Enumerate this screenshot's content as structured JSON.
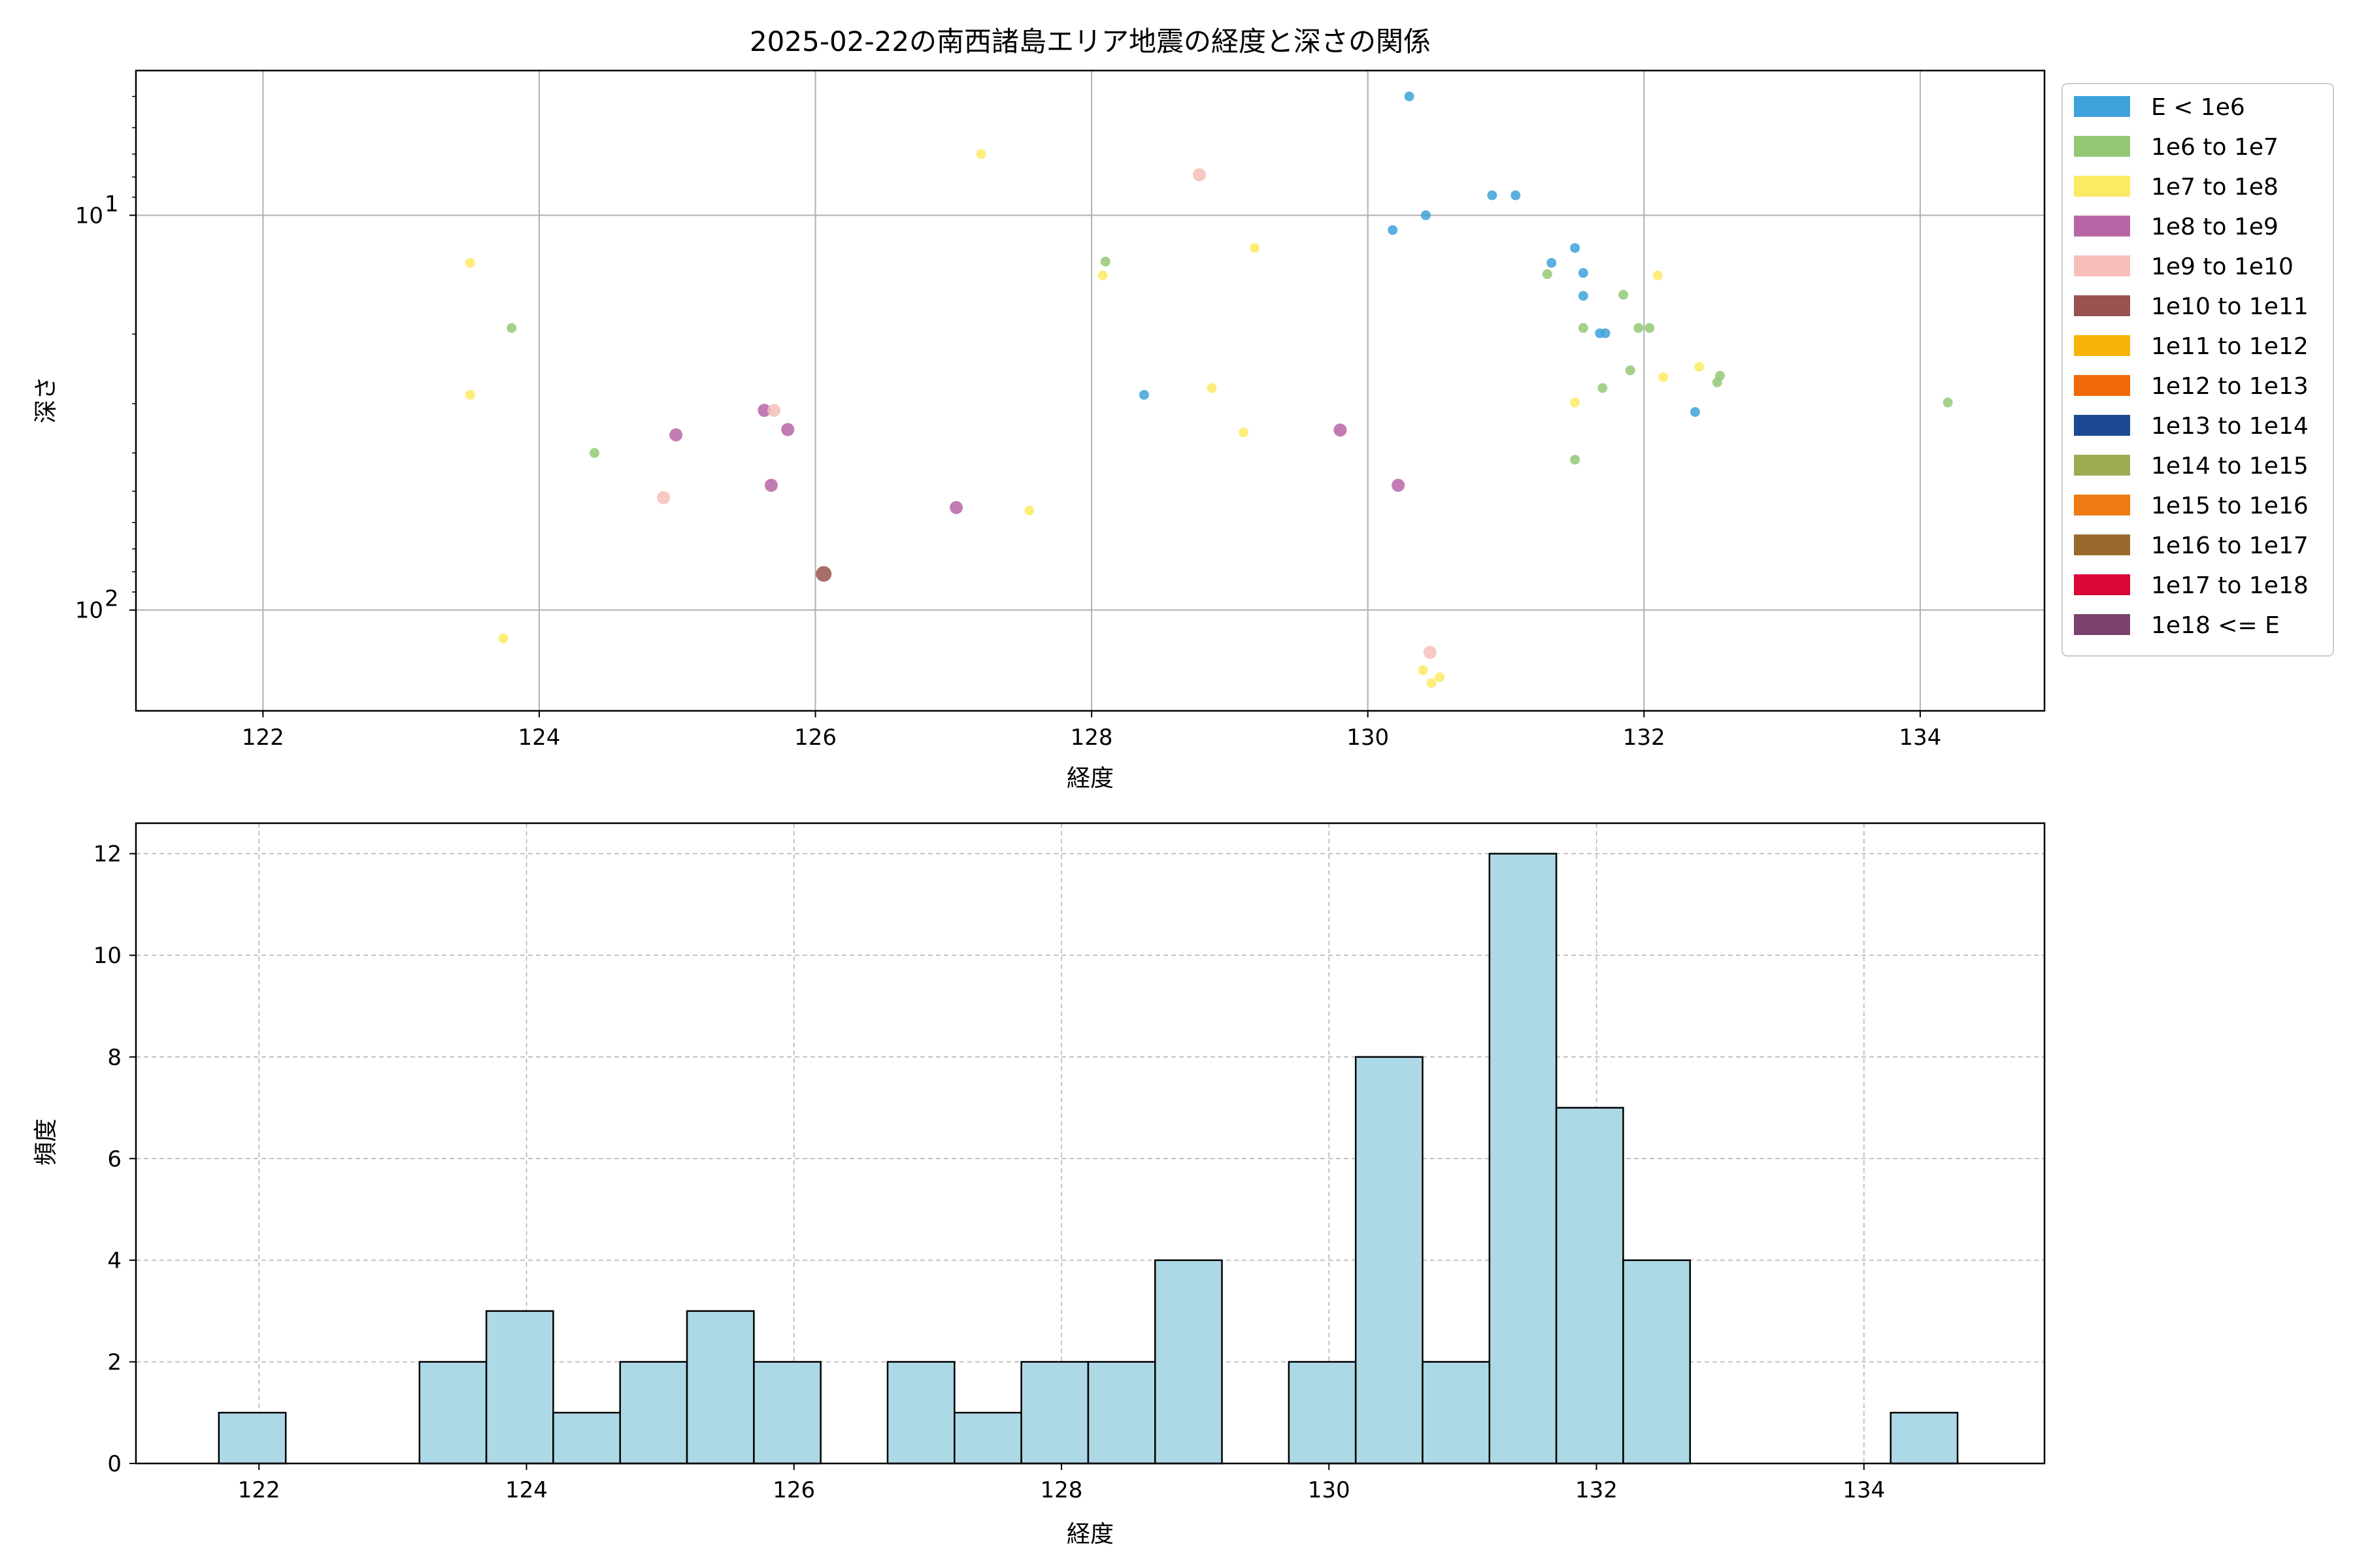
{
  "title": "2025-02-22の南西諸島エリア地震の経度と深さの関係",
  "chart_data": [
    {
      "type": "scatter",
      "xlabel": "経度",
      "ylabel": "深さ",
      "xlim": [
        121.08,
        134.9
      ],
      "ylim": [
        4.3,
        180
      ],
      "y_scale": "log",
      "y_inverted": true,
      "grid": true,
      "x_ticks": [
        "122",
        "124",
        "126",
        "128",
        "130",
        "132",
        "134"
      ],
      "y_ticks": [
        {
          "value": 10,
          "base": "10",
          "exp": "1"
        },
        {
          "value": 100,
          "base": "10",
          "exp": "2"
        }
      ],
      "legend_position": "outside-right",
      "legend": [
        {
          "label": "E < 1e6",
          "color": "#3fa2db"
        },
        {
          "label": "1e6 to 1e7",
          "color": "#93c975"
        },
        {
          "label": "1e7 to 1e8",
          "color": "#fdea64"
        },
        {
          "label": "1e8 to 1e9",
          "color": "#b865a6"
        },
        {
          "label": "1e9 to 1e10",
          "color": "#f6bfb8"
        },
        {
          "label": "1e10 to 1e11",
          "color": "#9a5450"
        },
        {
          "label": "1e11 to 1e12",
          "color": "#f7b30a"
        },
        {
          "label": "1e12 to 1e13",
          "color": "#ef6909"
        },
        {
          "label": "1e13 to 1e14",
          "color": "#1d4893"
        },
        {
          "label": "1e14 to 1e15",
          "color": "#9dac52"
        },
        {
          "label": "1e15 to 1e16",
          "color": "#ee7a11"
        },
        {
          "label": "1e16 to 1e17",
          "color": "#986b2c"
        },
        {
          "label": "1e17 to 1e18",
          "color": "#db0739"
        },
        {
          "label": "1e18 <= E",
          "color": "#7a426c"
        }
      ],
      "series": [
        {
          "name": "E < 1e6",
          "color": "#3fa2db",
          "points": [
            [
              130.3,
              5.0
            ],
            [
              130.42,
              10.0
            ],
            [
              130.18,
              10.9
            ],
            [
              130.9,
              8.9
            ],
            [
              131.07,
              8.9
            ],
            [
              131.5,
              12.1
            ],
            [
              131.33,
              13.2
            ],
            [
              131.56,
              14.0
            ],
            [
              131.56,
              16.0
            ],
            [
              131.68,
              19.9
            ],
            [
              131.72,
              19.9
            ],
            [
              128.38,
              28.5
            ],
            [
              132.37,
              31.5
            ]
          ]
        },
        {
          "name": "1e6 to 1e7",
          "color": "#93c975",
          "points": [
            [
              123.8,
              19.3
            ],
            [
              124.4,
              40.0
            ],
            [
              128.1,
              13.1
            ],
            [
              131.3,
              14.1
            ],
            [
              131.56,
              19.3
            ],
            [
              131.85,
              15.9
            ],
            [
              131.96,
              19.3
            ],
            [
              132.04,
              19.3
            ],
            [
              131.9,
              24.7
            ],
            [
              131.7,
              27.4
            ],
            [
              132.53,
              26.5
            ],
            [
              132.55,
              25.5
            ],
            [
              131.5,
              41.6
            ],
            [
              134.2,
              29.8
            ]
          ]
        },
        {
          "name": "1e7 to 1e8",
          "color": "#fdea64",
          "points": [
            [
              123.5,
              13.2
            ],
            [
              123.5,
              28.5
            ],
            [
              123.74,
              118.0
            ],
            [
              127.2,
              7.0
            ],
            [
              127.55,
              56.0
            ],
            [
              128.08,
              14.2
            ],
            [
              128.87,
              27.4
            ],
            [
              129.18,
              12.1
            ],
            [
              129.1,
              35.5
            ],
            [
              131.5,
              29.8
            ],
            [
              132.1,
              14.2
            ],
            [
              132.14,
              25.7
            ],
            [
              132.4,
              24.2
            ],
            [
              130.4,
              142.0
            ],
            [
              130.46,
              153.0
            ],
            [
              130.52,
              148.0
            ]
          ]
        },
        {
          "name": "1e8 to 1e9",
          "color": "#b865a6",
          "points": [
            [
              124.99,
              36.0
            ],
            [
              125.63,
              31.2
            ],
            [
              125.8,
              34.9
            ],
            [
              125.68,
              48.3
            ],
            [
              127.02,
              55.0
            ],
            [
              129.8,
              35.0
            ],
            [
              130.22,
              48.3
            ]
          ]
        },
        {
          "name": "1e9 to 1e10",
          "color": "#f6bfb8",
          "points": [
            [
              124.9,
              51.9
            ],
            [
              125.7,
              31.2
            ],
            [
              128.78,
              7.9
            ],
            [
              130.45,
              128.0
            ]
          ]
        },
        {
          "name": "1e10 to 1e11",
          "color": "#9a5450",
          "points": [
            [
              126.06,
              81.0
            ]
          ]
        }
      ]
    },
    {
      "type": "bar",
      "subtype": "histogram",
      "xlabel": "経度",
      "ylabel": "頻度",
      "xlim": [
        121.08,
        135.35
      ],
      "ylim": [
        0,
        12.6
      ],
      "grid": true,
      "grid_style": "dashed",
      "bar_color": "#add8e6",
      "edge_color": "#000000",
      "bin_width": 0.5,
      "x_ticks": [
        "122",
        "124",
        "126",
        "128",
        "130",
        "132",
        "134"
      ],
      "y_ticks": [
        "0",
        "2",
        "4",
        "6",
        "8",
        "10",
        "12"
      ],
      "bins": [
        {
          "start": 121.7,
          "count": 1
        },
        {
          "start": 123.2,
          "count": 2
        },
        {
          "start": 123.7,
          "count": 3
        },
        {
          "start": 124.2,
          "count": 1
        },
        {
          "start": 124.7,
          "count": 2
        },
        {
          "start": 125.2,
          "count": 3
        },
        {
          "start": 125.7,
          "count": 2
        },
        {
          "start": 126.7,
          "count": 2
        },
        {
          "start": 127.2,
          "count": 1
        },
        {
          "start": 127.7,
          "count": 2
        },
        {
          "start": 128.2,
          "count": 2
        },
        {
          "start": 128.7,
          "count": 4
        },
        {
          "start": 129.7,
          "count": 2
        },
        {
          "start": 130.2,
          "count": 8
        },
        {
          "start": 130.7,
          "count": 2
        },
        {
          "start": 131.2,
          "count": 12
        },
        {
          "start": 131.7,
          "count": 7
        },
        {
          "start": 132.2,
          "count": 4
        },
        {
          "start": 134.2,
          "count": 1
        }
      ]
    }
  ]
}
